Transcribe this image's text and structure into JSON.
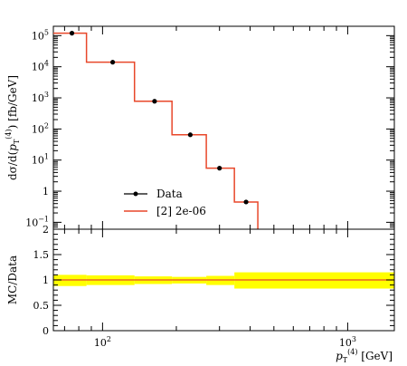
{
  "chart_data": [
    {
      "type": "step",
      "panel": "main",
      "ylabel": "dσ/d(p_T^(4)) [fb/GeV]",
      "yscale": "log",
      "xscale": "log",
      "xlim": [
        63,
        1550
      ],
      "ylim": [
        0.06,
        200000
      ],
      "ytick_labels": [
        "10^-1",
        "1",
        "10^1",
        "10^2",
        "10^3",
        "10^4",
        "10^5"
      ],
      "yticks": [
        0.1,
        1,
        10,
        100,
        1000,
        10000,
        100000
      ],
      "legend_position": "center-left",
      "bin_edges": [
        63,
        86,
        135,
        192,
        265,
        345,
        430
      ],
      "series": [
        {
          "name": "Data",
          "kind": "points",
          "color": "#000000",
          "x": [
            75,
            110,
            163,
            228,
            300,
            385
          ],
          "y": [
            120000,
            14000,
            780,
            65,
            5.5,
            0.45
          ]
        },
        {
          "name": "[2] 2e-06",
          "kind": "histogram",
          "color": "#e8472a",
          "y": [
            120000,
            14000,
            780,
            65,
            5.5,
            0.45
          ],
          "drop_to_bottom_after_last_bin": true
        }
      ]
    },
    {
      "type": "ratio",
      "panel": "ratio",
      "ylabel": "MC/Data",
      "xlabel": "p_T^(4) [GeV]",
      "xscale": "log",
      "xlim": [
        63,
        1550
      ],
      "ylim": [
        0,
        2
      ],
      "yticks": [
        0,
        0.5,
        1,
        1.5,
        2
      ],
      "ytick_labels": [
        "0",
        "0.5",
        "1",
        "1.5",
        "2"
      ],
      "xticks": [
        100,
        1000
      ],
      "xtick_labels": [
        "10^2",
        "10^3"
      ],
      "band_color": "#ffff00",
      "band_bins": [
        {
          "lo": 63,
          "hi": 86,
          "band_low": 0.88,
          "band_high": 1.1
        },
        {
          "lo": 86,
          "hi": 135,
          "band_low": 0.9,
          "band_high": 1.09
        },
        {
          "lo": 135,
          "hi": 192,
          "band_low": 0.92,
          "band_high": 1.07
        },
        {
          "lo": 192,
          "hi": 265,
          "band_low": 0.93,
          "band_high": 1.06
        },
        {
          "lo": 265,
          "hi": 345,
          "band_low": 0.9,
          "band_high": 1.08
        },
        {
          "lo": 345,
          "hi": 1550,
          "band_low": 0.83,
          "band_high": 1.15
        }
      ],
      "ratio_line": {
        "value": 1.0,
        "color": "#e8472a"
      }
    }
  ]
}
